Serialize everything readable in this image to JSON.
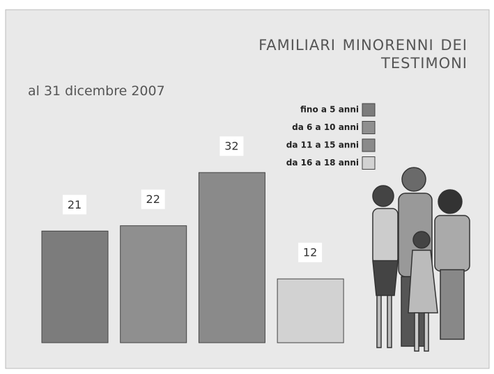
{
  "chart_data": {
    "type": "bar",
    "title": "FAMILIARI  MINORENNI DEI TESTIMONI",
    "subtitle": "al 31 dicembre 2007",
    "categories": [
      null
    ],
    "series": [
      {
        "name": "fino a 5 anni",
        "color": "#7c7c7c",
        "values": [
          21
        ]
      },
      {
        "name": "da 6 a 10 anni",
        "color": "#8f8f8f",
        "values": [
          22
        ]
      },
      {
        "name": "da 11 a 15 anni",
        "color": "#8a8a8a",
        "values": [
          32
        ]
      },
      {
        "name": "da 16 a 18 anni",
        "color": "#d2d2d2",
        "values": [
          12
        ]
      }
    ]
  }
}
